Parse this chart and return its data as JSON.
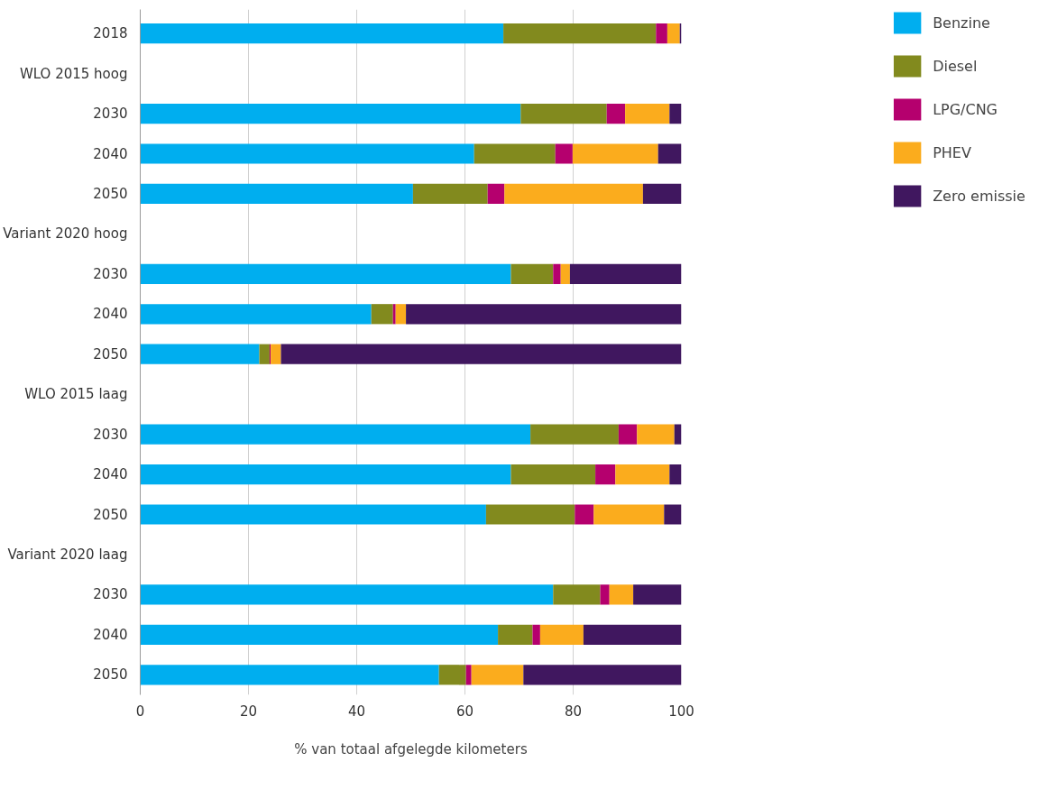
{
  "chart_data": {
    "type": "bar",
    "orientation": "horizontal",
    "stacked": true,
    "xlabel": "% van totaal afgelegde kilometers",
    "categories": [
      "2018",
      "WLO 2015 hoog",
      "2030",
      "2040",
      "2050",
      "Variant 2020 hoog",
      "2030",
      "2040",
      "2050",
      "WLO 2015 laag",
      "2030",
      "2040",
      "2050",
      "Variant 2020 laag",
      "2030",
      "2040",
      "2050"
    ],
    "series": [
      {
        "name": "Benzine",
        "color": "#00aeef",
        "values": [
          67.1,
          null,
          70.3,
          61.7,
          50.4,
          null,
          68.5,
          42.7,
          22.0,
          null,
          72.1,
          68.5,
          63.9,
          null,
          76.3,
          66.1,
          55.2
        ]
      },
      {
        "name": "Diesel",
        "color": "#828a1e",
        "values": [
          28.2,
          null,
          15.9,
          15.0,
          13.8,
          null,
          7.8,
          4.0,
          1.9,
          null,
          16.3,
          15.6,
          16.4,
          null,
          8.7,
          6.4,
          5.0
        ]
      },
      {
        "name": "LPG/CNG",
        "color": "#b5006e",
        "values": [
          2.1,
          null,
          3.4,
          3.2,
          3.1,
          null,
          1.4,
          0.5,
          0.2,
          null,
          3.4,
          3.7,
          3.5,
          null,
          1.7,
          1.4,
          1.0
        ]
      },
      {
        "name": "PHEV",
        "color": "#fbac1d",
        "values": [
          2.3,
          null,
          8.2,
          15.8,
          25.6,
          null,
          1.7,
          1.9,
          1.9,
          null,
          6.9,
          10.0,
          13.0,
          null,
          4.4,
          8.0,
          9.6
        ]
      },
      {
        "name": "Zero emissie",
        "color": "#40175f",
        "values": [
          0.3,
          null,
          2.2,
          4.3,
          7.1,
          null,
          20.6,
          50.9,
          74.0,
          null,
          1.3,
          2.2,
          3.2,
          null,
          8.9,
          18.1,
          29.2
        ]
      }
    ],
    "xlim": [
      0,
      100
    ],
    "xticks": [
      0,
      20,
      40,
      60,
      80,
      100
    ],
    "grid": "x",
    "legend": "top right"
  }
}
